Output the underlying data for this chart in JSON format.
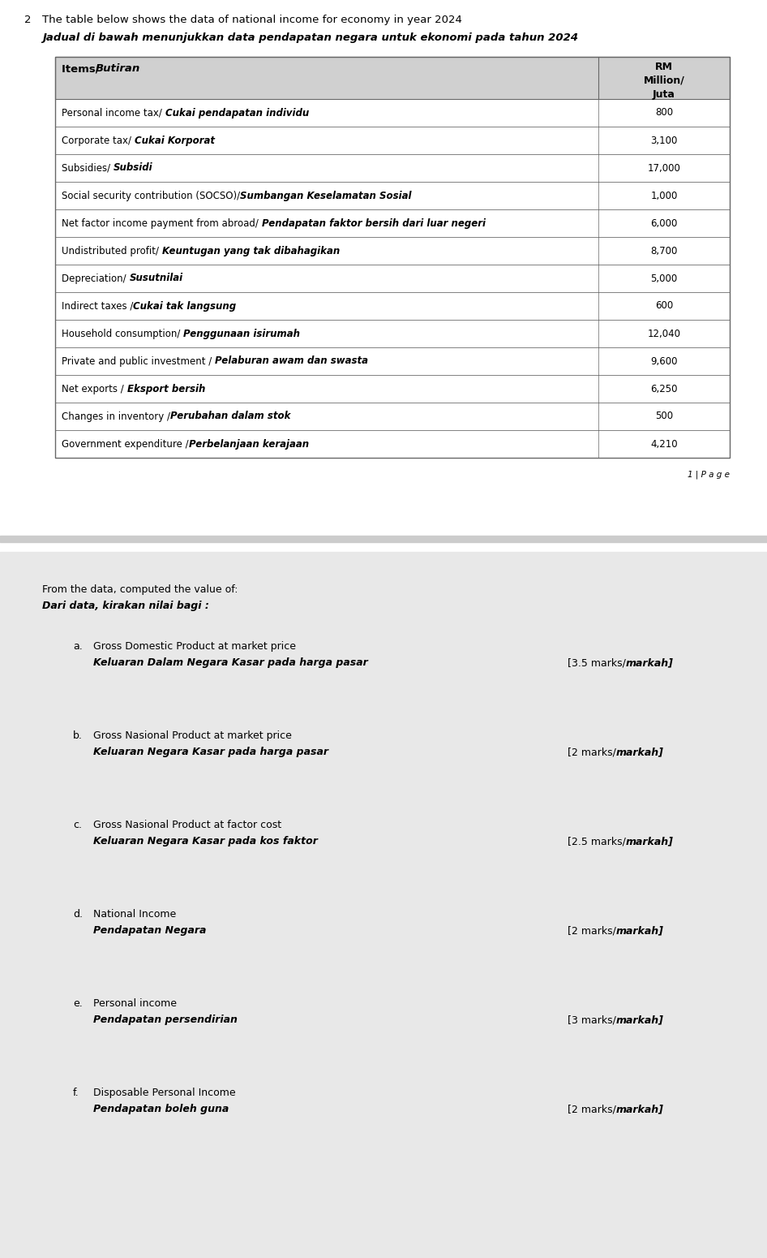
{
  "question_number": "2",
  "question_en": "The table below shows the data of national income for economy in year 2024",
  "question_ms": "Jadual di bawah menunjukkan data pendapatan negara untuk ekonomi pada tahun 2024",
  "col_header_left": "Items/ Butiran",
  "col_header_right_lines": [
    "RM",
    "Million/",
    "Juta"
  ],
  "table_rows": [
    {
      "normal": "Personal income tax/ ",
      "bold": "Cukai pendapatan individu",
      "value": "800"
    },
    {
      "normal": "Corporate tax/ ",
      "bold": "Cukai Korporat",
      "value": "3,100"
    },
    {
      "normal": "Subsidies/ ",
      "bold": "Subsidi",
      "value": "17,000"
    },
    {
      "normal": "Social security contribution (SOCSO)/",
      "bold": "Sumbangan Keselamatan Sosial",
      "value": "1,000"
    },
    {
      "normal": "Net factor income payment from abroad/ ",
      "bold": "Pendapatan faktor bersih dari luar negeri",
      "value": "6,000"
    },
    {
      "normal": "Undistributed profit/ ",
      "bold": "Keuntugan yang tak dibahagikan",
      "value": "8,700"
    },
    {
      "normal": "Depreciation/ ",
      "bold": "Susutnilai",
      "value": "5,000"
    },
    {
      "normal": "Indirect taxes /",
      "bold": "Cukai tak langsung",
      "value": "600"
    },
    {
      "normal": "Household consumption/ ",
      "bold": "Penggunaan isirumah",
      "value": "12,040"
    },
    {
      "normal": "Private and public investment / ",
      "bold": "Pelaburan awam dan swasta",
      "value": "9,600"
    },
    {
      "normal": "Net exports / ",
      "bold": "Eksport bersih",
      "value": "6,250"
    },
    {
      "normal": "Changes in inventory /",
      "bold": "Perubahan dalam stok",
      "value": "500"
    },
    {
      "normal": "Government expenditure /",
      "bold": "Perbelanjaan kerajaan",
      "value": "4,210"
    }
  ],
  "page_label": "1 | P a g e",
  "section2_line1_en": "From the data, computed the value of:",
  "section2_line1_ms": "Dari data, kirakan nilai bagi :",
  "items": [
    {
      "letter": "a.",
      "line1_en": "Gross Domestic Product at market price",
      "line2_ms": "Keluaran Dalam Negara Kasar pada harga pasar",
      "marks_normal": "[3.5 marks/",
      "marks_bold": "markah]"
    },
    {
      "letter": "b.",
      "line1_en": "Gross Nasional Product at market price",
      "line2_ms": "Keluaran Negara Kasar pada harga pasar",
      "marks_normal": "[2 marks/",
      "marks_bold": "markah]"
    },
    {
      "letter": "c.",
      "line1_en": "Gross Nasional Product at factor cost",
      "line2_ms": "Keluaran Negara Kasar pada kos faktor",
      "marks_normal": "[2.5 marks/",
      "marks_bold": "markah]"
    },
    {
      "letter": "d.",
      "line1_en": "National Income",
      "line2_ms": "Pendapatan Negara",
      "marks_normal": "[2 marks/",
      "marks_bold": "markah]"
    },
    {
      "letter": "e.",
      "line1_en": "Personal income",
      "line2_ms": "Pendapatan persendirian",
      "marks_normal": "[3 marks/",
      "marks_bold": "markah]"
    },
    {
      "letter": "f.",
      "line1_en": "Disposable Personal Income",
      "line2_ms": "Pendapatan boleh guna",
      "marks_normal": "[2 marks/",
      "marks_bold": "markah]"
    }
  ],
  "header_bg": "#d0d0d0",
  "border_color": "#666666",
  "white": "#ffffff",
  "gray_bg": "#e8e8e8"
}
